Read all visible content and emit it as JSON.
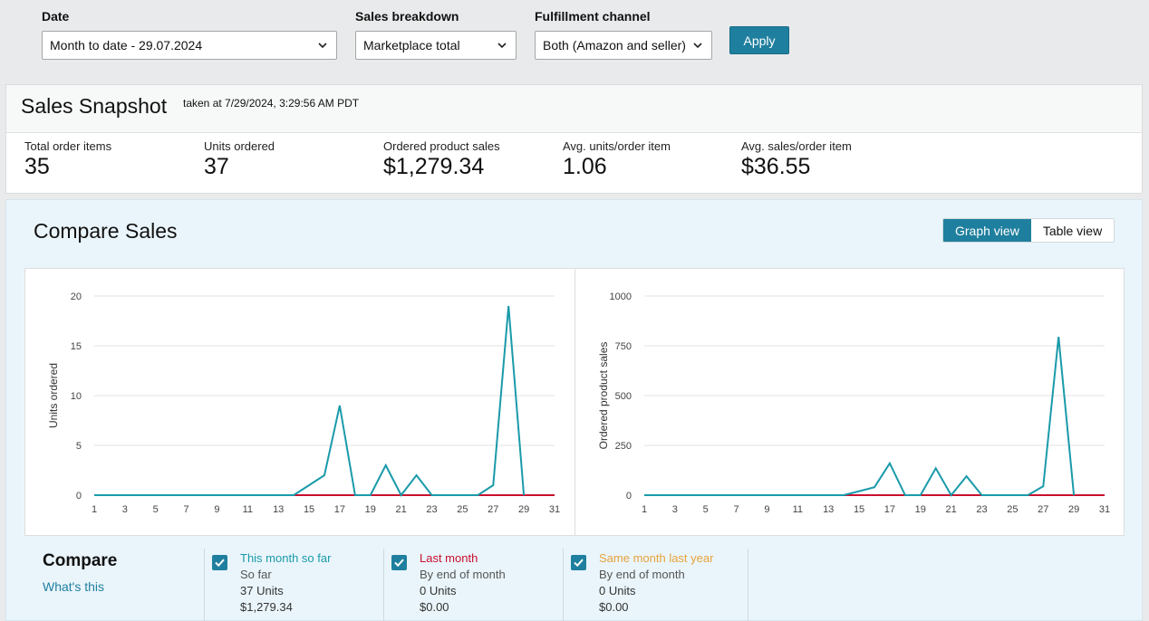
{
  "filters": {
    "date": {
      "label": "Date",
      "value": "Month to date - 29.07.2024"
    },
    "breakdown": {
      "label": "Sales breakdown",
      "value": "Marketplace total"
    },
    "channel": {
      "label": "Fulfillment channel",
      "value": "Both (Amazon and seller)"
    },
    "apply_label": "Apply"
  },
  "snapshot": {
    "title": "Sales Snapshot",
    "taken": "taken at 7/29/2024, 3:29:56 AM PDT",
    "metrics": [
      {
        "label": "Total order items",
        "value": "35"
      },
      {
        "label": "Units ordered",
        "value": "37"
      },
      {
        "label": "Ordered product sales",
        "value": "$1,279.34"
      },
      {
        "label": "Avg. units/order item",
        "value": "1.06"
      },
      {
        "label": "Avg. sales/order item",
        "value": "$36.55"
      }
    ]
  },
  "compare_sales": {
    "title": "Compare Sales",
    "graph_view": "Graph view",
    "table_view": "Table view",
    "compare_label": "Compare",
    "whats_this": "What's this",
    "series_legend": [
      {
        "name": "This month so far",
        "sub": "So far",
        "units": "37 Units",
        "sales": "$1,279.34",
        "color": "#1a9aaa"
      },
      {
        "name": "Last month",
        "sub": "By end of month",
        "units": "0 Units",
        "sales": "$0.00",
        "color": "#c8102e"
      },
      {
        "name": "Same month last year",
        "sub": "By end of month",
        "units": "0 Units",
        "sales": "$0.00",
        "color": "#e8a23a"
      }
    ]
  },
  "chart_data": [
    {
      "type": "line",
      "ylabel": "Units ordered",
      "ylim": [
        0,
        20
      ],
      "yticks": [
        0,
        5,
        10,
        15,
        20
      ],
      "xlim": [
        1,
        31
      ],
      "xticks": [
        1,
        3,
        5,
        7,
        9,
        11,
        13,
        15,
        17,
        19,
        21,
        23,
        25,
        27,
        29,
        31
      ],
      "series": [
        {
          "color": "#1a9aaa",
          "x": [
            1,
            2,
            3,
            4,
            5,
            6,
            7,
            8,
            9,
            10,
            11,
            12,
            13,
            14,
            15,
            16,
            17,
            18,
            19,
            20,
            21,
            22,
            23,
            24,
            25,
            26,
            27,
            28,
            29
          ],
          "values": [
            0,
            0,
            0,
            0,
            0,
            0,
            0,
            0,
            0,
            0,
            0,
            0,
            0,
            0,
            1,
            2,
            9,
            0,
            0,
            3,
            0,
            2,
            0,
            0,
            0,
            0,
            1,
            19,
            0
          ]
        },
        {
          "color": "#c8102e",
          "x": [
            1,
            31
          ],
          "values": [
            0,
            0
          ]
        },
        {
          "color": "#e8a23a",
          "x": [
            29,
            31
          ],
          "values": [
            0,
            0
          ]
        }
      ]
    },
    {
      "type": "line",
      "ylabel": "Ordered product sales",
      "ylim": [
        0,
        1000
      ],
      "yticks": [
        0,
        250,
        500,
        750,
        1000
      ],
      "xlim": [
        1,
        31
      ],
      "xticks": [
        1,
        3,
        5,
        7,
        9,
        11,
        13,
        15,
        17,
        19,
        21,
        23,
        25,
        27,
        29,
        31
      ],
      "series": [
        {
          "color": "#1a9aaa",
          "x": [
            1,
            2,
            3,
            4,
            5,
            6,
            7,
            8,
            9,
            10,
            11,
            12,
            13,
            14,
            15,
            16,
            17,
            18,
            19,
            20,
            21,
            22,
            23,
            24,
            25,
            26,
            27,
            28,
            29
          ],
          "values": [
            0,
            0,
            0,
            0,
            0,
            0,
            0,
            0,
            0,
            0,
            0,
            0,
            0,
            0,
            20,
            40,
            160,
            0,
            0,
            135,
            0,
            95,
            0,
            0,
            0,
            0,
            45,
            795,
            0
          ]
        },
        {
          "color": "#c8102e",
          "x": [
            1,
            31
          ],
          "values": [
            0,
            0
          ]
        },
        {
          "color": "#e8a23a",
          "x": [
            29,
            31
          ],
          "values": [
            0,
            0
          ]
        }
      ]
    }
  ]
}
